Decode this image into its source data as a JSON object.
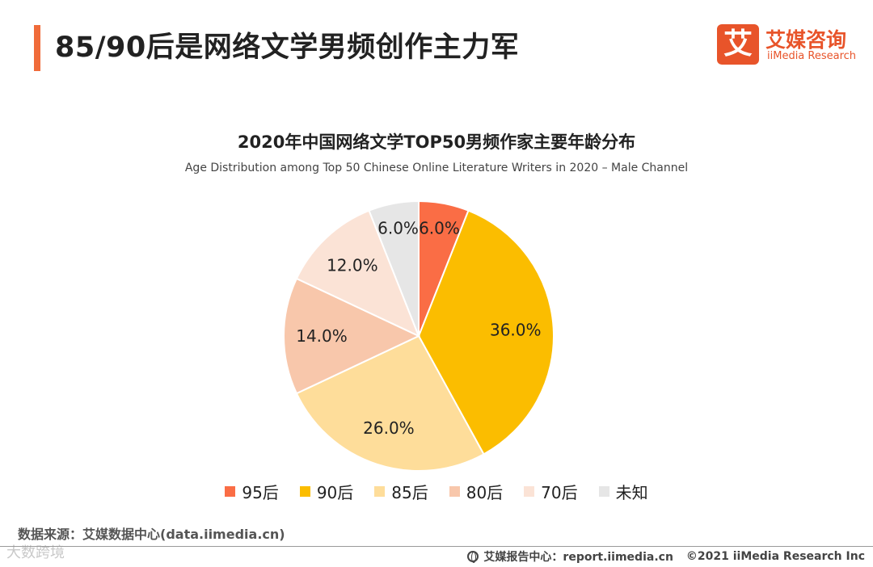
{
  "header": {
    "title": "85/90后是网络文学男频创作主力军",
    "accent_color": "#f06b3a"
  },
  "logo": {
    "mark": "艾",
    "cn": "艾媒咨询",
    "en": "iiMedia Research",
    "color": "#e8542a"
  },
  "chart_data": {
    "type": "pie",
    "title": "2020年中国网络文学TOP50男频作家主要年龄分布",
    "subtitle": "Age Distribution among Top 50 Chinese Online Literature Writers in 2020 – Male Channel",
    "categories": [
      "95后",
      "90后",
      "85后",
      "80后",
      "70后",
      "未知"
    ],
    "values": [
      6.0,
      36.0,
      26.0,
      14.0,
      12.0,
      6.0
    ],
    "labels": [
      "6.0%",
      "36.0%",
      "26.0%",
      "14.0%",
      "12.0%",
      "6.0%"
    ],
    "colors": [
      "#fa6d45",
      "#fbbd00",
      "#fedd9a",
      "#f8c7ab",
      "#fbe3d6",
      "#e6e6e6"
    ],
    "legend_position": "bottom"
  },
  "source": "数据来源：艾媒数据中心(data.iimedia.cn)",
  "watermark": "大数跨境",
  "footer": {
    "report": "艾媒报告中心：report.iimedia.cn",
    "copyright": "©2021  iiMedia Research  Inc"
  }
}
